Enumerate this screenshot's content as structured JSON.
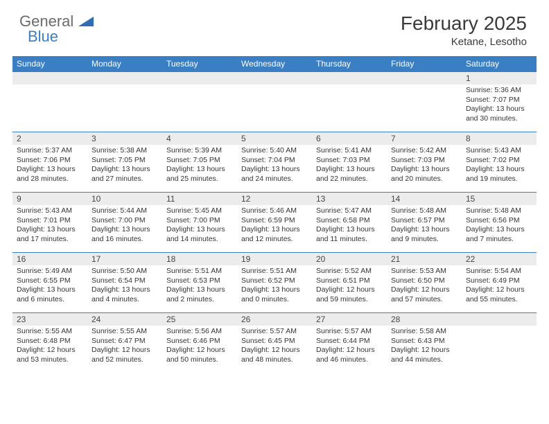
{
  "logo": {
    "general": "General",
    "blue": "Blue"
  },
  "title": {
    "month": "February 2025",
    "location": "Ketane, Lesotho"
  },
  "colors": {
    "header_bar": "#3a7fc4",
    "daynum_bg": "#ececec",
    "text": "#333333",
    "logo_gray": "#6b6b6b",
    "logo_blue": "#3a7fc4"
  },
  "weekdays": [
    "Sunday",
    "Monday",
    "Tuesday",
    "Wednesday",
    "Thursday",
    "Friday",
    "Saturday"
  ],
  "weeks": [
    [
      null,
      null,
      null,
      null,
      null,
      null,
      {
        "n": "1",
        "sr": "Sunrise: 5:36 AM",
        "ss": "Sunset: 7:07 PM",
        "dl": "Daylight: 13 hours and 30 minutes."
      }
    ],
    [
      {
        "n": "2",
        "sr": "Sunrise: 5:37 AM",
        "ss": "Sunset: 7:06 PM",
        "dl": "Daylight: 13 hours and 28 minutes."
      },
      {
        "n": "3",
        "sr": "Sunrise: 5:38 AM",
        "ss": "Sunset: 7:05 PM",
        "dl": "Daylight: 13 hours and 27 minutes."
      },
      {
        "n": "4",
        "sr": "Sunrise: 5:39 AM",
        "ss": "Sunset: 7:05 PM",
        "dl": "Daylight: 13 hours and 25 minutes."
      },
      {
        "n": "5",
        "sr": "Sunrise: 5:40 AM",
        "ss": "Sunset: 7:04 PM",
        "dl": "Daylight: 13 hours and 24 minutes."
      },
      {
        "n": "6",
        "sr": "Sunrise: 5:41 AM",
        "ss": "Sunset: 7:03 PM",
        "dl": "Daylight: 13 hours and 22 minutes."
      },
      {
        "n": "7",
        "sr": "Sunrise: 5:42 AM",
        "ss": "Sunset: 7:03 PM",
        "dl": "Daylight: 13 hours and 20 minutes."
      },
      {
        "n": "8",
        "sr": "Sunrise: 5:43 AM",
        "ss": "Sunset: 7:02 PM",
        "dl": "Daylight: 13 hours and 19 minutes."
      }
    ],
    [
      {
        "n": "9",
        "sr": "Sunrise: 5:43 AM",
        "ss": "Sunset: 7:01 PM",
        "dl": "Daylight: 13 hours and 17 minutes."
      },
      {
        "n": "10",
        "sr": "Sunrise: 5:44 AM",
        "ss": "Sunset: 7:00 PM",
        "dl": "Daylight: 13 hours and 16 minutes."
      },
      {
        "n": "11",
        "sr": "Sunrise: 5:45 AM",
        "ss": "Sunset: 7:00 PM",
        "dl": "Daylight: 13 hours and 14 minutes."
      },
      {
        "n": "12",
        "sr": "Sunrise: 5:46 AM",
        "ss": "Sunset: 6:59 PM",
        "dl": "Daylight: 13 hours and 12 minutes."
      },
      {
        "n": "13",
        "sr": "Sunrise: 5:47 AM",
        "ss": "Sunset: 6:58 PM",
        "dl": "Daylight: 13 hours and 11 minutes."
      },
      {
        "n": "14",
        "sr": "Sunrise: 5:48 AM",
        "ss": "Sunset: 6:57 PM",
        "dl": "Daylight: 13 hours and 9 minutes."
      },
      {
        "n": "15",
        "sr": "Sunrise: 5:48 AM",
        "ss": "Sunset: 6:56 PM",
        "dl": "Daylight: 13 hours and 7 minutes."
      }
    ],
    [
      {
        "n": "16",
        "sr": "Sunrise: 5:49 AM",
        "ss": "Sunset: 6:55 PM",
        "dl": "Daylight: 13 hours and 6 minutes."
      },
      {
        "n": "17",
        "sr": "Sunrise: 5:50 AM",
        "ss": "Sunset: 6:54 PM",
        "dl": "Daylight: 13 hours and 4 minutes."
      },
      {
        "n": "18",
        "sr": "Sunrise: 5:51 AM",
        "ss": "Sunset: 6:53 PM",
        "dl": "Daylight: 13 hours and 2 minutes."
      },
      {
        "n": "19",
        "sr": "Sunrise: 5:51 AM",
        "ss": "Sunset: 6:52 PM",
        "dl": "Daylight: 13 hours and 0 minutes."
      },
      {
        "n": "20",
        "sr": "Sunrise: 5:52 AM",
        "ss": "Sunset: 6:51 PM",
        "dl": "Daylight: 12 hours and 59 minutes."
      },
      {
        "n": "21",
        "sr": "Sunrise: 5:53 AM",
        "ss": "Sunset: 6:50 PM",
        "dl": "Daylight: 12 hours and 57 minutes."
      },
      {
        "n": "22",
        "sr": "Sunrise: 5:54 AM",
        "ss": "Sunset: 6:49 PM",
        "dl": "Daylight: 12 hours and 55 minutes."
      }
    ],
    [
      {
        "n": "23",
        "sr": "Sunrise: 5:55 AM",
        "ss": "Sunset: 6:48 PM",
        "dl": "Daylight: 12 hours and 53 minutes."
      },
      {
        "n": "24",
        "sr": "Sunrise: 5:55 AM",
        "ss": "Sunset: 6:47 PM",
        "dl": "Daylight: 12 hours and 52 minutes."
      },
      {
        "n": "25",
        "sr": "Sunrise: 5:56 AM",
        "ss": "Sunset: 6:46 PM",
        "dl": "Daylight: 12 hours and 50 minutes."
      },
      {
        "n": "26",
        "sr": "Sunrise: 5:57 AM",
        "ss": "Sunset: 6:45 PM",
        "dl": "Daylight: 12 hours and 48 minutes."
      },
      {
        "n": "27",
        "sr": "Sunrise: 5:57 AM",
        "ss": "Sunset: 6:44 PM",
        "dl": "Daylight: 12 hours and 46 minutes."
      },
      {
        "n": "28",
        "sr": "Sunrise: 5:58 AM",
        "ss": "Sunset: 6:43 PM",
        "dl": "Daylight: 12 hours and 44 minutes."
      },
      null
    ]
  ]
}
